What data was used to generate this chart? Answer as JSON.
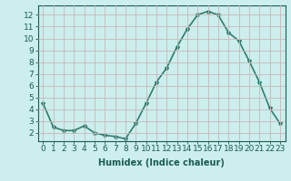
{
  "x": [
    0,
    1,
    2,
    3,
    4,
    5,
    6,
    7,
    8,
    9,
    10,
    11,
    12,
    13,
    14,
    15,
    16,
    17,
    18,
    19,
    20,
    21,
    22,
    23
  ],
  "y": [
    4.5,
    2.5,
    2.2,
    2.2,
    2.6,
    2.0,
    1.8,
    1.7,
    1.5,
    2.8,
    4.5,
    6.3,
    7.5,
    9.3,
    10.8,
    12.0,
    12.3,
    12.0,
    10.5,
    9.8,
    8.1,
    6.3,
    4.1,
    2.8
  ],
  "line_color": "#2e7d6e",
  "marker": "*",
  "marker_size": 3,
  "xlabel": "Humidex (Indice chaleur)",
  "xlim": [
    -0.5,
    23.5
  ],
  "ylim": [
    1.3,
    12.8
  ],
  "yticks": [
    2,
    3,
    4,
    5,
    6,
    7,
    8,
    9,
    10,
    11,
    12
  ],
  "xticks": [
    0,
    1,
    2,
    3,
    4,
    5,
    6,
    7,
    8,
    9,
    10,
    11,
    12,
    13,
    14,
    15,
    16,
    17,
    18,
    19,
    20,
    21,
    22,
    23
  ],
  "bg_color": "#cceeed",
  "grid_color": "#c8b8b8",
  "tick_color": "#1a5c52",
  "label_color": "#1a5c52",
  "line_width": 1.2,
  "font_size": 6.5
}
